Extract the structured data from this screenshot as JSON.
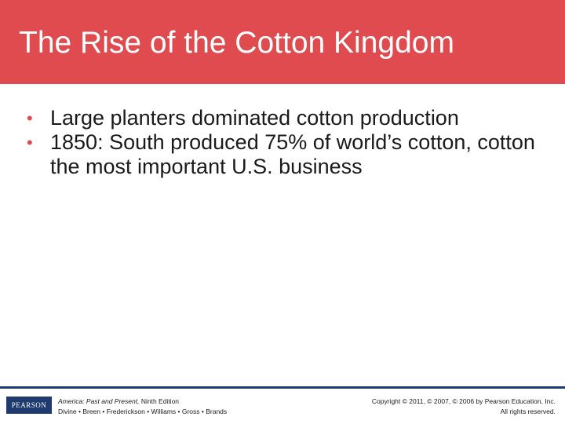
{
  "slide": {
    "title": "The Rise of the Cotton Kingdom",
    "bullets": [
      {
        "marker": "•",
        "text": "Large planters dominated cotton production"
      },
      {
        "marker": "•",
        "text": "1850: South produced 75% of world’s cotton, cotton the most important U.S. business"
      }
    ]
  },
  "footer": {
    "logo_text": "PEARSON",
    "book_title": "America: Past and Present,",
    "edition": " Ninth Edition",
    "authors": "Divine • Breen • Frederickson • Williams • Gross • Brands",
    "copyright": "Copyright © 2011, © 2007, © 2006 by Pearson Education, Inc.",
    "rights": "All rights reserved."
  },
  "colors": {
    "title_bar": "#e04b4f",
    "bullet_marker": "#e04b4f",
    "footer_rule": "#1f3a6e",
    "logo_bg": "#1f3a6e"
  }
}
